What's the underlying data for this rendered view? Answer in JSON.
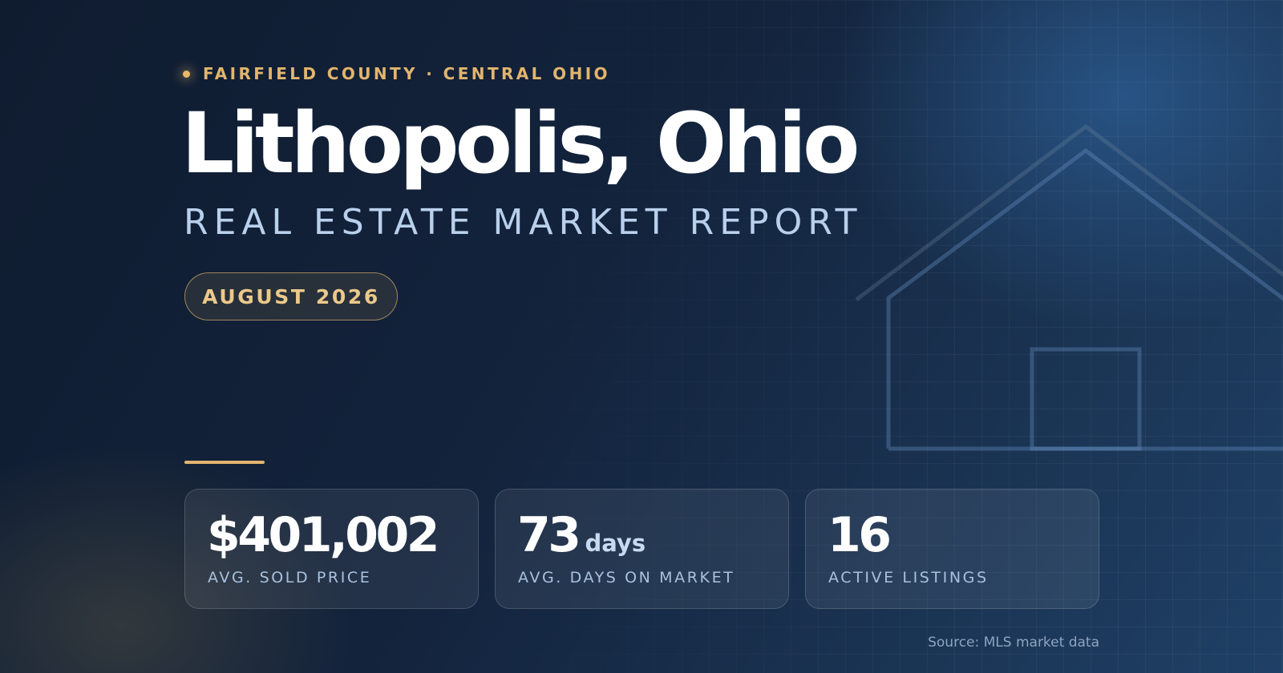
{
  "header": {
    "eyebrow": "FAIRFIELD COUNTY · CENTRAL OHIO",
    "title": "Lithopolis, Ohio",
    "subtitle": "REAL ESTATE MARKET REPORT",
    "date": "AUGUST 2026"
  },
  "stats": [
    {
      "value": "$401,002",
      "label": "AVG. SOLD PRICE"
    },
    {
      "value": "73",
      "unit": "days",
      "label": "AVG. DAYS ON MARKET"
    },
    {
      "value": "16",
      "label": "ACTIVE LISTINGS"
    }
  ],
  "footer": {
    "source": "Source: MLS market data"
  }
}
